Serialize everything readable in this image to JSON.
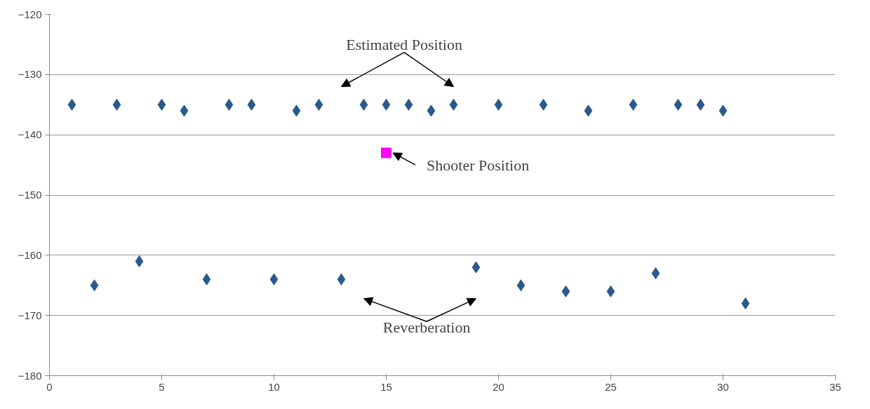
{
  "chart_data": {
    "type": "scatter",
    "xlim": [
      0,
      35
    ],
    "xticks": [
      0,
      5,
      10,
      15,
      20,
      25,
      30,
      35
    ],
    "ylim": [
      -180,
      -120
    ],
    "yticks": [
      -180,
      -170,
      -160,
      -150,
      -140,
      -130,
      -120
    ],
    "grid": "y",
    "marker": "diamond",
    "series": [
      {
        "color": "#2a5a8c",
        "x": [
          1,
          3,
          5,
          6,
          8,
          9,
          11,
          12,
          14,
          15,
          16,
          17,
          18,
          20,
          22,
          24,
          26,
          28,
          29,
          30,
          2,
          4,
          7,
          10,
          13,
          19,
          21,
          23,
          25,
          27,
          31
        ],
        "values": [
          -135,
          -135,
          -135,
          -136,
          -135,
          -135,
          -136,
          -135,
          -135,
          -135,
          -135,
          -136,
          -135,
          -135,
          -135,
          -136,
          -135,
          -135,
          -135,
          -136,
          -165,
          -161,
          -164,
          -164,
          -164,
          -162,
          -165,
          -166,
          -166,
          -163,
          -168
        ]
      },
      {
        "color": "#ff00ff",
        "marker": "square",
        "x": [
          15
        ],
        "values": [
          -143
        ]
      }
    ],
    "annotations": [
      "Estimated Position",
      {
        "text": "Shooter Position",
        "x": 15,
        "y": -143
      },
      "Reverberation"
    ]
  }
}
